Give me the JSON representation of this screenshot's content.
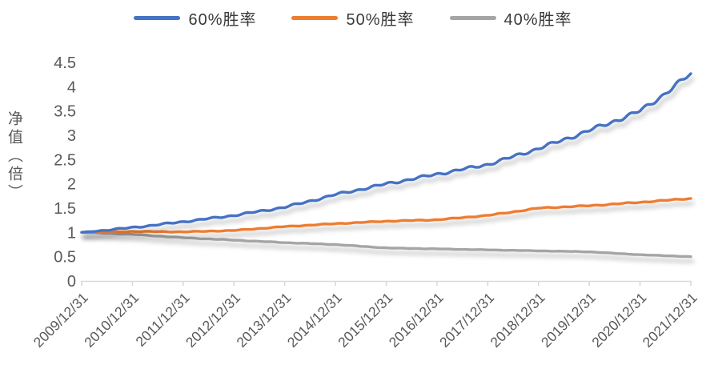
{
  "chart_data": {
    "type": "line",
    "title": "",
    "xlabel": "",
    "ylabel": "净值（倍）",
    "ylim": [
      0,
      4.5
    ],
    "ytick_step": 0.5,
    "yticks": [
      "0",
      "0.5",
      "1",
      "1.5",
      "2",
      "2.5",
      "3",
      "3.5",
      "4",
      "4.5"
    ],
    "categories": [
      "2009/12/31",
      "2010/12/31",
      "2011/12/31",
      "2012/12/31",
      "2013/12/31",
      "2014/12/31",
      "2015/12/31",
      "2016/12/31",
      "2017/12/31",
      "2018/12/31",
      "2019/12/31",
      "2020/12/31",
      "2021/12/31"
    ],
    "grid": false,
    "legend_position": "top",
    "series": [
      {
        "name": "60%胜率",
        "color": "#4472C4",
        "values": [
          1.0,
          1.1,
          1.22,
          1.35,
          1.52,
          1.78,
          2.0,
          2.2,
          2.4,
          2.73,
          3.1,
          3.5,
          4.27
        ]
      },
      {
        "name": "50%胜率",
        "color": "#ED7D31",
        "values": [
          1.0,
          1.02,
          1.01,
          1.04,
          1.12,
          1.18,
          1.23,
          1.26,
          1.35,
          1.5,
          1.55,
          1.62,
          1.7
        ]
      },
      {
        "name": "40%胜率",
        "color": "#A5A5A5",
        "values": [
          1.0,
          0.96,
          0.89,
          0.84,
          0.79,
          0.75,
          0.68,
          0.66,
          0.64,
          0.62,
          0.6,
          0.54,
          0.5
        ]
      }
    ],
    "colors": {
      "axis_line": "#d9d9d9",
      "tick_label": "#595959",
      "legend_text": "#3a3a3a",
      "background": "#ffffff"
    }
  }
}
